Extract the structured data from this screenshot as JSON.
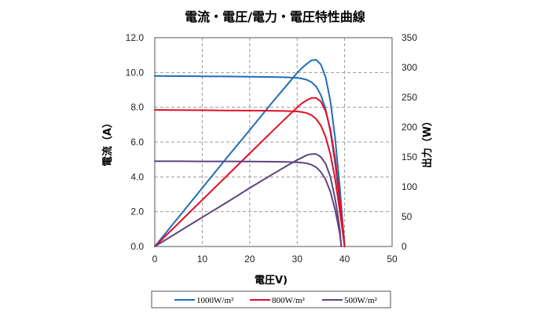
{
  "chart_data": {
    "type": "line",
    "title": "電流・電圧/電力・電圧特性曲線",
    "xlabel": "電圧V)",
    "ylabel_left": "電流（A）",
    "ylabel_right": "出力（W）",
    "xlim": [
      0,
      50
    ],
    "ylim_left": [
      0,
      12
    ],
    "ylim_right": [
      0,
      350
    ],
    "x_ticks": [
      "0",
      "10",
      "20",
      "30",
      "40",
      "50"
    ],
    "y_left_ticks": [
      "0.0",
      "2.0",
      "4.0",
      "6.0",
      "8.0",
      "10.0",
      "12.0"
    ],
    "y_right_ticks": [
      "0",
      "50",
      "100",
      "150",
      "200",
      "250",
      "300",
      "350"
    ],
    "grid": true,
    "legend_position": "bottom",
    "series": [
      {
        "name": "1000W/m²",
        "color": "#1f6fb5",
        "current_curve": {
          "x": [
            0,
            5,
            10,
            15,
            20,
            25,
            28,
            30,
            31,
            32,
            33,
            34,
            35,
            36,
            37,
            38,
            39,
            39.5,
            40
          ],
          "y": [
            9.8,
            9.79,
            9.78,
            9.77,
            9.76,
            9.74,
            9.72,
            9.69,
            9.65,
            9.58,
            9.45,
            9.2,
            8.7,
            7.9,
            6.6,
            4.8,
            2.5,
            1.2,
            0
          ]
        },
        "power_curve": {
          "x": [
            0,
            5,
            10,
            15,
            20,
            25,
            28,
            30,
            31,
            32,
            33,
            34,
            35,
            36,
            37,
            38,
            39,
            39.5,
            40
          ],
          "y": [
            0,
            49,
            98,
            147,
            195,
            244,
            272,
            291,
            299,
            306,
            312,
            313,
            305,
            284,
            244,
            182,
            98,
            47,
            0
          ]
        }
      },
      {
        "name": "800W/m²",
        "color": "#e0102a",
        "current_curve": {
          "x": [
            0,
            5,
            10,
            15,
            20,
            25,
            28,
            30,
            31,
            32,
            33,
            34,
            35,
            36,
            37,
            38,
            39,
            39.5,
            40
          ],
          "y": [
            7.85,
            7.84,
            7.83,
            7.82,
            7.81,
            7.8,
            7.78,
            7.76,
            7.73,
            7.67,
            7.55,
            7.33,
            6.95,
            6.3,
            5.3,
            3.9,
            2.0,
            1.0,
            0
          ]
        },
        "power_curve": {
          "x": [
            0,
            5,
            10,
            15,
            20,
            25,
            28,
            30,
            31,
            32,
            33,
            34,
            35,
            36,
            37,
            38,
            39,
            39.5,
            40
          ],
          "y": [
            0,
            39,
            78,
            117,
            156,
            195,
            218,
            233,
            240,
            245,
            249,
            249,
            243,
            227,
            196,
            148,
            78,
            40,
            0
          ]
        }
      },
      {
        "name": "500W/m²",
        "color": "#5e4580",
        "current_curve": {
          "x": [
            0,
            5,
            10,
            15,
            20,
            25,
            28,
            30,
            31,
            32,
            33,
            34,
            35,
            36,
            37,
            38,
            38.5,
            39,
            39.3
          ],
          "y": [
            4.9,
            4.9,
            4.89,
            4.89,
            4.88,
            4.87,
            4.86,
            4.84,
            4.82,
            4.78,
            4.7,
            4.55,
            4.28,
            3.85,
            3.15,
            2.1,
            1.45,
            0.7,
            0
          ]
        },
        "power_curve": {
          "x": [
            0,
            5,
            10,
            15,
            20,
            25,
            28,
            30,
            31,
            32,
            33,
            34,
            35,
            36,
            37,
            38,
            38.5,
            39,
            39.3
          ],
          "y": [
            0,
            24.5,
            49,
            73,
            98,
            122,
            136,
            145,
            149,
            153,
            155,
            155,
            150,
            139,
            117,
            80,
            56,
            27,
            0
          ]
        }
      }
    ]
  }
}
